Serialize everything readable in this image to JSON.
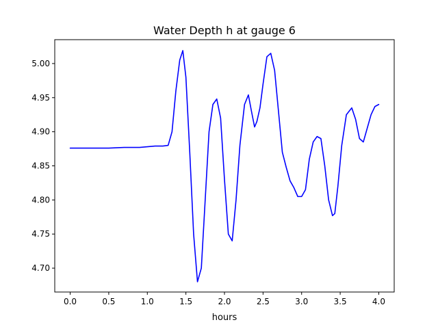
{
  "chart_data": {
    "type": "line",
    "title": "Water Depth h at gauge 6",
    "xlabel": "hours",
    "ylabel": "",
    "xlim": [
      -0.2,
      4.2
    ],
    "ylim": [
      4.665,
      5.035
    ],
    "xticks": [
      0.0,
      0.5,
      1.0,
      1.5,
      2.0,
      2.5,
      3.0,
      3.5,
      4.0
    ],
    "xtick_labels": [
      "0.0",
      "0.5",
      "1.0",
      "1.5",
      "2.0",
      "2.5",
      "3.0",
      "3.5",
      "4.0"
    ],
    "yticks": [
      4.7,
      4.75,
      4.8,
      4.85,
      4.9,
      4.95,
      5.0
    ],
    "ytick_labels": [
      "4.70",
      "4.75",
      "4.80",
      "4.85",
      "4.90",
      "4.95",
      "5.00"
    ],
    "grid": false,
    "series": [
      {
        "color": "#0000ff",
        "x": [
          0.0,
          0.5,
          0.7,
          0.9,
          1.0,
          1.1,
          1.2,
          1.27,
          1.32,
          1.37,
          1.42,
          1.46,
          1.5,
          1.55,
          1.6,
          1.65,
          1.7,
          1.75,
          1.8,
          1.85,
          1.9,
          1.95,
          2.0,
          2.05,
          2.1,
          2.15,
          2.2,
          2.26,
          2.31,
          2.35,
          2.39,
          2.42,
          2.46,
          2.5,
          2.55,
          2.6,
          2.65,
          2.7,
          2.75,
          2.8,
          2.85,
          2.9,
          2.95,
          3.0,
          3.05,
          3.1,
          3.15,
          3.2,
          3.25,
          3.3,
          3.35,
          3.4,
          3.43,
          3.47,
          3.52,
          3.58,
          3.65,
          3.7,
          3.75,
          3.8,
          3.85,
          3.9,
          3.95,
          4.0
        ],
        "y": [
          4.876,
          4.876,
          4.877,
          4.877,
          4.878,
          4.879,
          4.879,
          4.88,
          4.9,
          4.96,
          5.005,
          5.019,
          4.98,
          4.87,
          4.75,
          4.68,
          4.7,
          4.8,
          4.9,
          4.94,
          4.948,
          4.92,
          4.83,
          4.75,
          4.74,
          4.8,
          4.88,
          4.94,
          4.954,
          4.93,
          4.907,
          4.915,
          4.935,
          4.97,
          5.01,
          5.015,
          4.99,
          4.93,
          4.87,
          4.848,
          4.828,
          4.818,
          4.805,
          4.805,
          4.815,
          4.86,
          4.885,
          4.893,
          4.89,
          4.85,
          4.8,
          4.777,
          4.78,
          4.82,
          4.88,
          4.925,
          4.935,
          4.918,
          4.89,
          4.885,
          4.905,
          4.925,
          4.937,
          4.94
        ]
      }
    ]
  }
}
